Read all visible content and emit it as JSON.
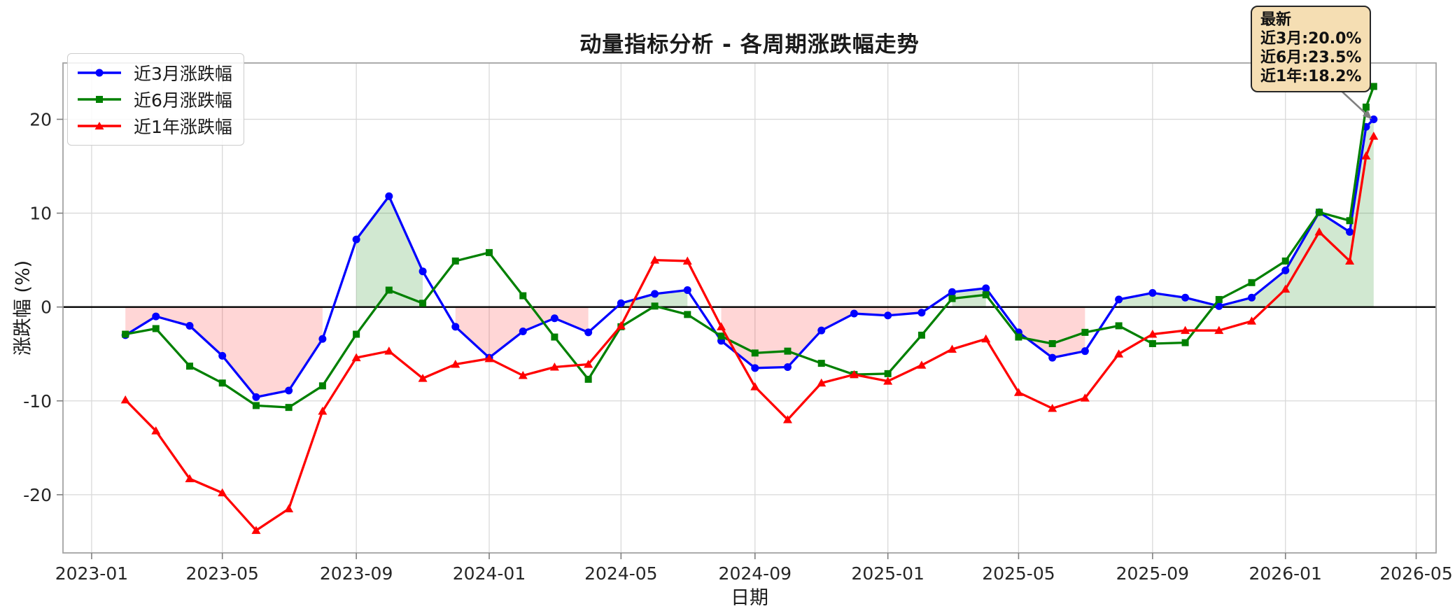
{
  "chart_data": {
    "type": "line",
    "title": "动量指标分析 - 各周期涨跌幅走势",
    "xlabel": "日期",
    "ylabel": "涨跌幅 (%)",
    "grid": true,
    "legend_position": "upper-left",
    "ylim": [
      -26.2,
      26.0
    ],
    "xlim_days_from_2023_01_01": [
      -26.3,
      1234.3
    ],
    "y_ticks": [
      20,
      10,
      0,
      -10,
      -20
    ],
    "x_ticks": [
      {
        "date": "2023-01-01",
        "label": "2023-01"
      },
      {
        "date": "2023-05-01",
        "label": "2023-05"
      },
      {
        "date": "2023-09-01",
        "label": "2023-09"
      },
      {
        "date": "2024-01-01",
        "label": "2024-01"
      },
      {
        "date": "2024-05-01",
        "label": "2024-05"
      },
      {
        "date": "2024-09-01",
        "label": "2024-09"
      },
      {
        "date": "2025-01-01",
        "label": "2025-01"
      },
      {
        "date": "2025-05-01",
        "label": "2025-05"
      },
      {
        "date": "2025-09-01",
        "label": "2025-09"
      },
      {
        "date": "2026-01-01",
        "label": "2026-01"
      },
      {
        "date": "2026-05-01",
        "label": "2026-05"
      }
    ],
    "dates": [
      "2023-02-01",
      "2023-03-01",
      "2023-04-01",
      "2023-05-01",
      "2023-06-01",
      "2023-07-01",
      "2023-08-01",
      "2023-09-01",
      "2023-10-01",
      "2023-11-01",
      "2023-12-01",
      "2024-01-01",
      "2024-02-01",
      "2024-03-01",
      "2024-04-01",
      "2024-05-01",
      "2024-06-01",
      "2024-07-01",
      "2024-08-01",
      "2024-09-01",
      "2024-10-01",
      "2024-11-01",
      "2024-12-01",
      "2025-01-01",
      "2025-02-01",
      "2025-03-01",
      "2025-04-01",
      "2025-05-01",
      "2025-06-01",
      "2025-07-01",
      "2025-08-01",
      "2025-09-01",
      "2025-10-01",
      "2025-11-01",
      "2025-12-01",
      "2026-01-01",
      "2026-02-01",
      "2026-03-01",
      "2026-03-16",
      "2026-03-23"
    ],
    "series": [
      {
        "name": "近3月涨跌幅",
        "color": "#0000ff",
        "marker": "circle",
        "values": [
          -3.0,
          -1.0,
          -2.0,
          -5.2,
          -9.6,
          -8.9,
          -3.4,
          7.2,
          11.8,
          3.8,
          -2.1,
          -5.4,
          -2.6,
          -1.2,
          -2.7,
          0.4,
          1.4,
          1.8,
          -3.6,
          -6.5,
          -6.4,
          -2.5,
          -0.7,
          -0.9,
          -0.6,
          1.6,
          2.0,
          -2.7,
          -5.4,
          -4.7,
          0.8,
          1.5,
          1.0,
          0.1,
          1.0,
          3.9,
          10.1,
          8.0,
          19.2,
          20.0
        ]
      },
      {
        "name": "近6月涨跌幅",
        "color": "#008000",
        "marker": "square",
        "values": [
          -2.9,
          -2.3,
          -6.3,
          -8.1,
          -10.5,
          -10.7,
          -8.4,
          -2.9,
          1.8,
          0.4,
          4.9,
          5.8,
          1.2,
          -3.2,
          -7.7,
          -2.1,
          0.1,
          -0.8,
          -3.1,
          -4.9,
          -4.7,
          -6.0,
          -7.2,
          -7.1,
          -3.0,
          0.9,
          1.3,
          -3.2,
          -3.9,
          -2.7,
          -2.0,
          -3.9,
          -3.8,
          0.8,
          2.6,
          4.9,
          10.1,
          9.2,
          21.3,
          23.5
        ]
      },
      {
        "name": "近1年涨跌幅",
        "color": "#ff0000",
        "marker": "triangle",
        "values": [
          -9.9,
          -13.2,
          -18.3,
          -19.8,
          -23.8,
          -21.5,
          -11.1,
          -5.4,
          -4.7,
          -7.6,
          -6.1,
          -5.5,
          -7.3,
          -6.4,
          -6.1,
          -2.0,
          5.0,
          4.9,
          -2.1,
          -8.5,
          -12.0,
          -8.1,
          -7.2,
          -7.9,
          -6.2,
          -4.5,
          -3.4,
          -9.1,
          -10.8,
          -9.7,
          -5.0,
          -2.9,
          -2.5,
          -2.5,
          -1.5,
          1.9,
          8.0,
          4.9,
          16.1,
          18.2
        ]
      }
    ],
    "fill": {
      "source_series": "近3月涨跌幅",
      "positive_color": "rgba(0,128,0,0.18)",
      "negative_color": "rgba(255,0,0,0.16)"
    },
    "annotation": {
      "lines": [
        "最新",
        "近3月:20.0%",
        "近6月:23.5%",
        "近1年:18.2%"
      ],
      "bg_color": "#f5deb3",
      "border_color": "#262626",
      "arrow_color": "#808080"
    },
    "style": {
      "grid_color": "#d9d9d9",
      "spine_color": "#a3a3a3",
      "zero_line_color": "#000000",
      "tick_color": "#7f7f7f",
      "tick_label_color": "#262626"
    }
  }
}
